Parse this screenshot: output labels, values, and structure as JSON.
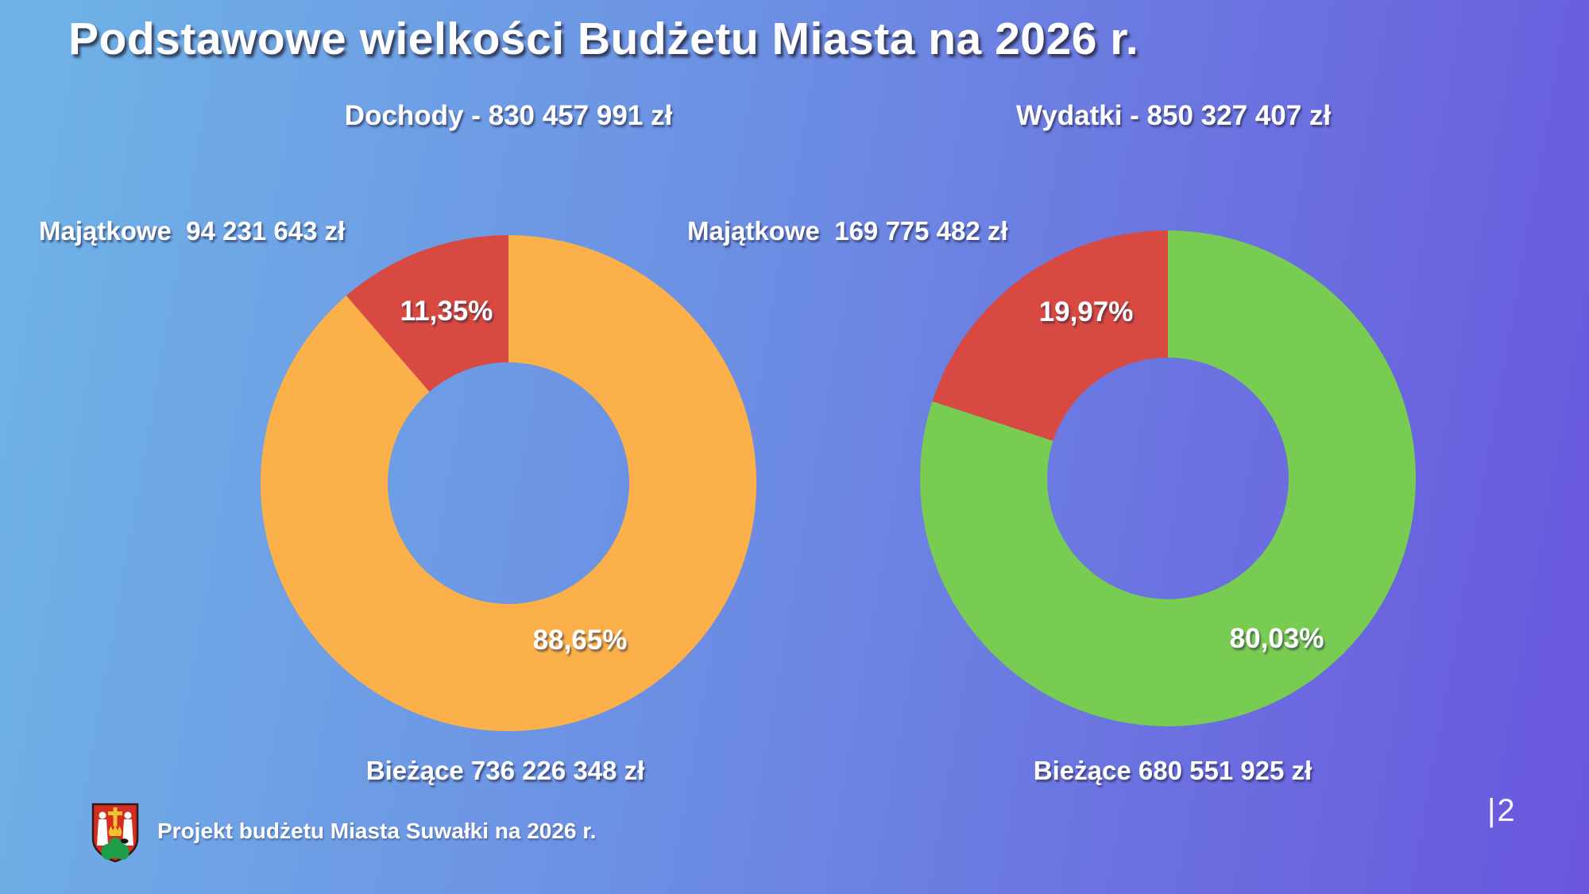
{
  "slide": {
    "title": "Podstawowe wielkości Budżetu Miasta na 2026 r.",
    "footer": "Projekt budżetu Miasta Suwałki na 2026 r.",
    "page_number": "|2",
    "logo": "suwalki-coat-of-arms"
  },
  "colors": {
    "background_left": "#6fb4e7",
    "background_right": "#6a56dd",
    "orange": "#FBB04A",
    "red": "#D84941",
    "green": "#78CC52",
    "text": "#FFFFFF"
  },
  "chart_data": [
    {
      "type": "pie",
      "subtype": "donut",
      "title": "Dochody - 830 457 991 zł",
      "total_name": "Dochody",
      "total_value_zl": 830457991,
      "start_angle_deg": 0,
      "direction": "clockwise",
      "legend_position": "callouts",
      "slices": [
        {
          "name": "Bieżące",
          "amount_zl": 736226348,
          "percent": 88.65,
          "percent_label": "88,65%",
          "callout": "Bieżące 736 226 348 zł",
          "color": "#FBB04A"
        },
        {
          "name": "Majątkowe",
          "amount_zl": 94231643,
          "percent": 11.35,
          "percent_label": "11,35%",
          "callout": "Majątkowe  94 231 643 zł",
          "color": "#D84941"
        }
      ]
    },
    {
      "type": "pie",
      "subtype": "donut",
      "title": "Wydatki - 850 327 407 zł",
      "total_name": "Wydatki",
      "total_value_zl": 850327407,
      "start_angle_deg": 0,
      "direction": "clockwise",
      "legend_position": "callouts",
      "slices": [
        {
          "name": "Bieżące",
          "amount_zl": 680551925,
          "percent": 80.03,
          "percent_label": "80,03%",
          "callout": "Bieżące 680 551 925 zł",
          "color": "#78CC52"
        },
        {
          "name": "Majątkowe",
          "amount_zl": 169775482,
          "percent": 19.97,
          "percent_label": "19,97%",
          "callout": "Majątkowe  169 775 482 zł",
          "color": "#D84941"
        }
      ]
    }
  ]
}
